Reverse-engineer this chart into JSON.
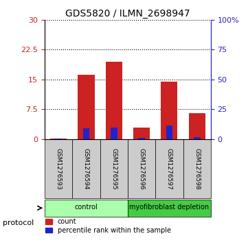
{
  "title": "GDS5820 / ILMN_2698947",
  "samples": [
    "GSM1276593",
    "GSM1276594",
    "GSM1276595",
    "GSM1276596",
    "GSM1276597",
    "GSM1276598"
  ],
  "counts": [
    0.05,
    16.2,
    19.5,
    2.8,
    14.5,
    6.5
  ],
  "percentile_ranks": [
    0.3,
    9.0,
    9.5,
    1.0,
    11.0,
    1.5
  ],
  "groups": [
    {
      "label": "control",
      "indices": [
        0,
        1,
        2
      ],
      "color": "#aaffaa"
    },
    {
      "label": "myofibroblast depletion",
      "indices": [
        3,
        4,
        5
      ],
      "color": "#44cc44"
    }
  ],
  "ylim_left": [
    0,
    30
  ],
  "ylim_right": [
    0,
    100
  ],
  "yticks_left": [
    0,
    7.5,
    15,
    22.5,
    30
  ],
  "ytick_labels_left": [
    "0",
    "7.5",
    "15",
    "22.5",
    "30"
  ],
  "yticks_right": [
    0,
    25,
    50,
    75,
    100
  ],
  "ytick_labels_right": [
    "0",
    "25",
    "50",
    "75",
    "100%"
  ],
  "bar_color_red": "#cc2222",
  "bar_color_blue": "#2222cc",
  "bar_width": 0.6,
  "background_color": "#ffffff",
  "sample_box_color": "#cccccc",
  "grid_color": "#000000",
  "protocol_label": "protocol",
  "legend_count": "count",
  "legend_percentile": "percentile rank within the sample"
}
